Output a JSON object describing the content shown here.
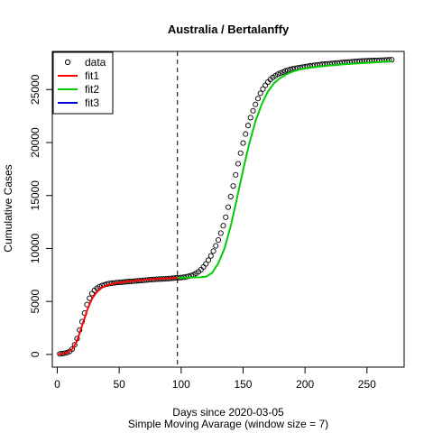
{
  "chart_data": {
    "type": "scatter",
    "title": "Australia / Bertalanffy",
    "xlabel": "Days since 2020-03-05",
    "subtitle": "Simple Moving Avarage (window size = 7)",
    "ylabel": "Cumulative Cases",
    "xlim": [
      -4,
      280
    ],
    "ylim": [
      -1200,
      28600
    ],
    "xticks": [
      0,
      50,
      100,
      150,
      200,
      250
    ],
    "yticks": [
      0,
      5000,
      10000,
      15000,
      20000,
      25000
    ],
    "vline_x": 97,
    "legend_position": "top-left",
    "legend": [
      {
        "label": "data",
        "kind": "point",
        "color": "#000000"
      },
      {
        "label": "fit1",
        "kind": "line",
        "color": "#ff0000"
      },
      {
        "label": "fit2",
        "kind": "line",
        "color": "#00cd00"
      },
      {
        "label": "fit3",
        "kind": "line",
        "color": "#0000cd"
      }
    ],
    "data_points": {
      "name": "data",
      "x": [
        2,
        4,
        6,
        8,
        10,
        12,
        14,
        16,
        18,
        20,
        22,
        24,
        26,
        28,
        30,
        32,
        34,
        36,
        38,
        40,
        42,
        44,
        46,
        48,
        50,
        52,
        54,
        56,
        58,
        60,
        62,
        64,
        66,
        68,
        70,
        72,
        74,
        76,
        78,
        80,
        82,
        84,
        86,
        88,
        90,
        92,
        94,
        96,
        98,
        100,
        102,
        104,
        106,
        108,
        110,
        112,
        114,
        116,
        118,
        120,
        122,
        124,
        126,
        128,
        130,
        132,
        134,
        136,
        138,
        140,
        142,
        144,
        146,
        148,
        150,
        152,
        154,
        156,
        158,
        160,
        162,
        164,
        166,
        168,
        170,
        172,
        174,
        176,
        178,
        180,
        182,
        184,
        186,
        188,
        190,
        192,
        194,
        196,
        198,
        200,
        202,
        204,
        206,
        208,
        210,
        212,
        214,
        216,
        218,
        220,
        222,
        224,
        226,
        228,
        230,
        232,
        234,
        236,
        238,
        240,
        242,
        244,
        246,
        248,
        250,
        252,
        254,
        256,
        258,
        260,
        262,
        264,
        266,
        268,
        270
      ],
      "y": [
        50,
        80,
        120,
        180,
        290,
        500,
        900,
        1500,
        2300,
        3100,
        3900,
        4700,
        5300,
        5750,
        6050,
        6250,
        6400,
        6500,
        6580,
        6640,
        6690,
        6720,
        6750,
        6780,
        6800,
        6820,
        6840,
        6860,
        6880,
        6900,
        6920,
        6940,
        6960,
        6980,
        7000,
        7020,
        7040,
        7060,
        7080,
        7100,
        7110,
        7120,
        7130,
        7150,
        7160,
        7180,
        7200,
        7220,
        7240,
        7260,
        7290,
        7330,
        7380,
        7440,
        7530,
        7650,
        7800,
        8000,
        8250,
        8550,
        8900,
        9300,
        9750,
        10250,
        10800,
        11450,
        12150,
        12950,
        13900,
        14900,
        15900,
        16950,
        18000,
        19000,
        19950,
        20800,
        21600,
        22350,
        23000,
        23600,
        24150,
        24650,
        25050,
        25400,
        25700,
        25950,
        26150,
        26300,
        26450,
        26550,
        26650,
        26750,
        26830,
        26900,
        26960,
        27000,
        27040,
        27080,
        27120,
        27160,
        27200,
        27240,
        27270,
        27300,
        27330,
        27360,
        27390,
        27410,
        27430,
        27450,
        27470,
        27490,
        27510,
        27530,
        27550,
        27570,
        27590,
        27610,
        27630,
        27650,
        27670,
        27690,
        27700,
        27710,
        27720,
        27730,
        27740,
        27750,
        27760,
        27770,
        27780,
        27790,
        27800,
        27810,
        27820
      ]
    },
    "series": [
      {
        "name": "fit1",
        "color": "#ff0000",
        "x": [
          0,
          4,
          8,
          12,
          16,
          20,
          24,
          28,
          32,
          36,
          40,
          45,
          50,
          55,
          60,
          65,
          70,
          75,
          80,
          85,
          90,
          97
        ],
        "y": [
          20,
          60,
          170,
          480,
          1300,
          2700,
          4150,
          5250,
          5900,
          6300,
          6520,
          6680,
          6780,
          6850,
          6920,
          6980,
          7030,
          7080,
          7120,
          7150,
          7180,
          7220
        ]
      },
      {
        "name": "fit2",
        "color": "#00cd00",
        "x": [
          97,
          105,
          110,
          115,
          120,
          125,
          130,
          135,
          140,
          145,
          150,
          155,
          160,
          165,
          170,
          175,
          180,
          185,
          190,
          195,
          200,
          210,
          220,
          230,
          240,
          250,
          260,
          270
        ],
        "y": [
          7220,
          7250,
          7270,
          7280,
          7330,
          7700,
          8600,
          10000,
          12100,
          14700,
          17400,
          19900,
          22000,
          23600,
          24800,
          25600,
          26100,
          26450,
          26700,
          26870,
          27000,
          27150,
          27270,
          27370,
          27450,
          27530,
          27600,
          27670
        ]
      },
      {
        "name": "fit3",
        "color": "#0000cd",
        "x": [],
        "y": []
      }
    ]
  }
}
